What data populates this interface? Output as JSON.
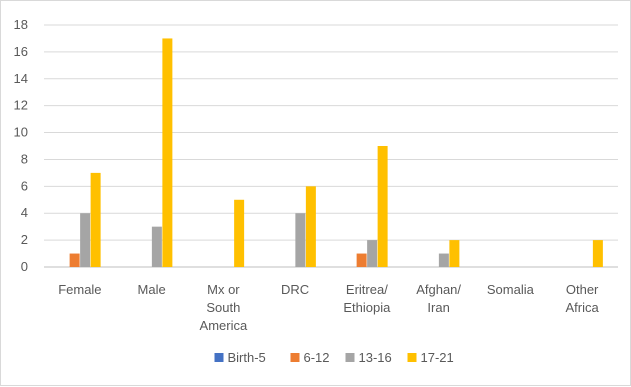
{
  "chart_data": {
    "type": "bar",
    "title": "",
    "xlabel": "",
    "ylabel": "",
    "ylim": [
      0,
      18
    ],
    "ytick_step": 2,
    "grid": true,
    "legend_position": "bottom",
    "categories": [
      [
        "Female"
      ],
      [
        "Male"
      ],
      [
        "Mx or",
        "South",
        "America"
      ],
      [
        "DRC"
      ],
      [
        "Eritrea/",
        "Ethiopia"
      ],
      [
        "Afghan/",
        "Iran"
      ],
      [
        "Somalia"
      ],
      [
        "Other",
        "Africa"
      ]
    ],
    "series": [
      {
        "name": "Birth-5",
        "color": "#4472c4",
        "values": [
          0,
          0,
          0,
          0,
          0,
          0,
          0,
          0
        ]
      },
      {
        "name": "6-12",
        "color": "#ed7d31",
        "values": [
          1,
          0,
          0,
          0,
          1,
          0,
          0,
          0
        ]
      },
      {
        "name": "13-16",
        "color": "#a5a5a5",
        "values": [
          4,
          3,
          0,
          4,
          2,
          1,
          0,
          0
        ]
      },
      {
        "name": "17-21",
        "color": "#ffc000",
        "values": [
          7,
          17,
          5,
          6,
          9,
          2,
          0,
          2
        ]
      }
    ]
  }
}
